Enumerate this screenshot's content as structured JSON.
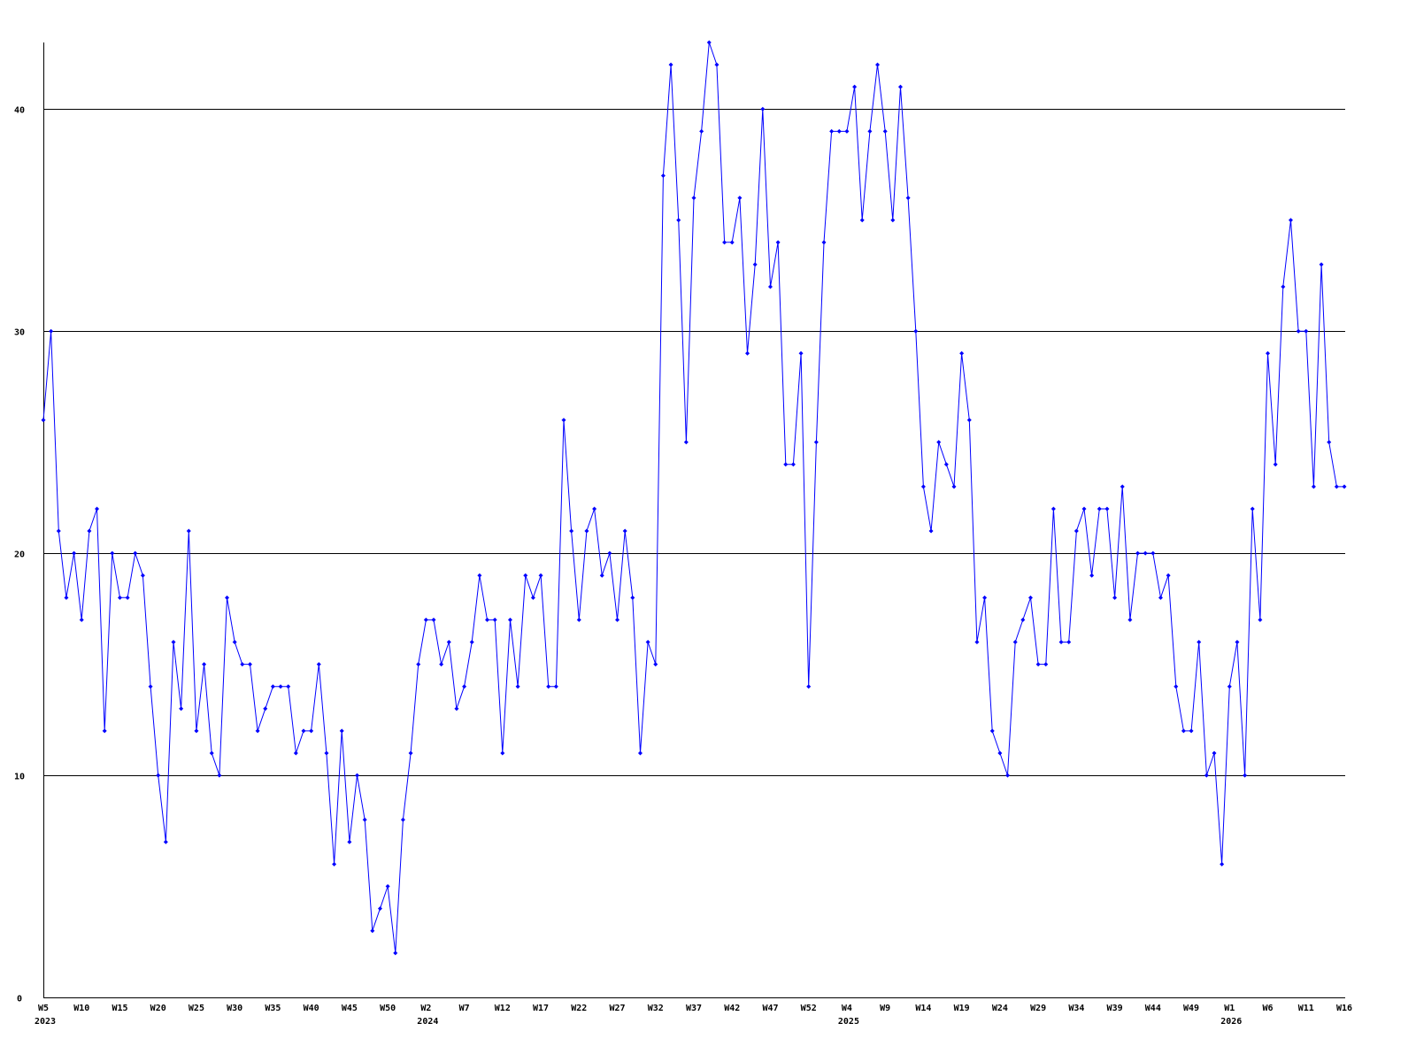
{
  "chart_data": {
    "type": "line",
    "title": "",
    "xlabel": "",
    "ylabel": "",
    "ylim": [
      0,
      43
    ],
    "y_ticks": [
      0,
      10,
      20,
      30,
      40
    ],
    "grid": "horizontal lines at y ticks",
    "legend": "none",
    "line_color": "#0000ff",
    "grid_color": "#000000",
    "x_tick_every": 5,
    "year_labels": [
      {
        "year": "2023",
        "at": "2023-W5"
      },
      {
        "year": "2024",
        "at": "2024-W2"
      },
      {
        "year": "2025",
        "at": "2025-W4"
      },
      {
        "year": "2026",
        "at": "2026-W1"
      }
    ],
    "categories": [
      "2023-W5",
      "2023-W6",
      "2023-W7",
      "2023-W8",
      "2023-W9",
      "2023-W10",
      "2023-W11",
      "2023-W12",
      "2023-W13",
      "2023-W14",
      "2023-W15",
      "2023-W16",
      "2023-W17",
      "2023-W18",
      "2023-W19",
      "2023-W20",
      "2023-W21",
      "2023-W22",
      "2023-W23",
      "2023-W24",
      "2023-W25",
      "2023-W26",
      "2023-W27",
      "2023-W28",
      "2023-W29",
      "2023-W30",
      "2023-W31",
      "2023-W32",
      "2023-W33",
      "2023-W34",
      "2023-W35",
      "2023-W36",
      "2023-W37",
      "2023-W38",
      "2023-W39",
      "2023-W40",
      "2023-W41",
      "2023-W42",
      "2023-W43",
      "2023-W44",
      "2023-W45",
      "2023-W46",
      "2023-W47",
      "2023-W48",
      "2023-W49",
      "2023-W50",
      "2023-W51",
      "2023-W52",
      "2023-W53",
      "2024-W1",
      "2024-W2",
      "2024-W3",
      "2024-W4",
      "2024-W5",
      "2024-W6",
      "2024-W7",
      "2024-W8",
      "2024-W9",
      "2024-W10",
      "2024-W11",
      "2024-W12",
      "2024-W13",
      "2024-W14",
      "2024-W15",
      "2024-W16",
      "2024-W17",
      "2024-W18",
      "2024-W19",
      "2024-W20",
      "2024-W21",
      "2024-W22",
      "2024-W23",
      "2024-W24",
      "2024-W25",
      "2024-W26",
      "2024-W27",
      "2024-W28",
      "2024-W29",
      "2024-W30",
      "2024-W31",
      "2024-W32",
      "2024-W33",
      "2024-W34",
      "2024-W35",
      "2024-W36",
      "2024-W37",
      "2024-W38",
      "2024-W39",
      "2024-W40",
      "2024-W41",
      "2024-W42",
      "2024-W43",
      "2024-W44",
      "2024-W45",
      "2024-W46",
      "2024-W47",
      "2024-W48",
      "2024-W49",
      "2024-W50",
      "2024-W51",
      "2024-W52",
      "2024-W53",
      "2025-W1",
      "2025-W2",
      "2025-W3",
      "2025-W4",
      "2025-W5",
      "2025-W6",
      "2025-W7",
      "2025-W8",
      "2025-W9",
      "2025-W10",
      "2025-W11",
      "2025-W12",
      "2025-W13",
      "2025-W14",
      "2025-W15",
      "2025-W16",
      "2025-W17",
      "2025-W18",
      "2025-W19",
      "2025-W20",
      "2025-W21",
      "2025-W22",
      "2025-W23",
      "2025-W24",
      "2025-W25",
      "2025-W26",
      "2025-W27",
      "2025-W28",
      "2025-W29",
      "2025-W30",
      "2025-W31",
      "2025-W32",
      "2025-W33",
      "2025-W34",
      "2025-W35",
      "2025-W36",
      "2025-W37",
      "2025-W38",
      "2025-W39",
      "2025-W40",
      "2025-W41",
      "2025-W42",
      "2025-W43",
      "2025-W44",
      "2025-W45",
      "2025-W46",
      "2025-W47",
      "2025-W48",
      "2025-W49",
      "2025-W50",
      "2025-W51",
      "2025-W52",
      "2025-W53",
      "2026-W1",
      "2026-W2",
      "2026-W3",
      "2026-W4",
      "2026-W5",
      "2026-W6",
      "2026-W7",
      "2026-W8",
      "2026-W9",
      "2026-W10",
      "2026-W11",
      "2026-W12",
      "2026-W13",
      "2026-W14",
      "2026-W15",
      "2026-W16"
    ],
    "values": [
      26,
      30,
      21,
      18,
      20,
      17,
      21,
      22,
      12,
      20,
      18,
      18,
      20,
      19,
      14,
      10,
      7,
      16,
      13,
      21,
      12,
      15,
      11,
      10,
      18,
      16,
      15,
      15,
      12,
      13,
      14,
      14,
      14,
      11,
      12,
      12,
      15,
      11,
      6,
      12,
      7,
      10,
      8,
      3,
      4,
      5,
      2,
      8,
      11,
      15,
      17,
      17,
      15,
      16,
      13,
      14,
      16,
      19,
      17,
      17,
      11,
      17,
      14,
      19,
      18,
      19,
      14,
      14,
      26,
      21,
      17,
      21,
      22,
      19,
      20,
      17,
      21,
      18,
      11,
      16,
      15,
      37,
      42,
      35,
      25,
      36,
      39,
      43,
      42,
      34,
      34,
      36,
      29,
      33,
      40,
      32,
      34,
      24,
      24,
      29,
      14,
      25,
      34,
      39,
      39,
      39,
      41,
      35,
      39,
      42,
      39,
      35,
      41,
      36,
      30,
      23,
      21,
      25,
      24,
      23,
      29,
      26,
      16,
      18,
      12,
      11,
      10,
      16,
      17,
      18,
      15,
      15,
      22,
      16,
      16,
      21,
      22,
      19,
      22,
      22,
      18,
      23,
      17,
      20,
      20,
      20,
      18,
      19,
      14,
      12,
      12,
      16,
      10,
      11,
      6,
      14,
      16,
      10,
      22,
      17,
      29,
      24,
      32,
      35,
      30,
      30,
      23,
      33,
      25,
      23,
      23
    ]
  }
}
